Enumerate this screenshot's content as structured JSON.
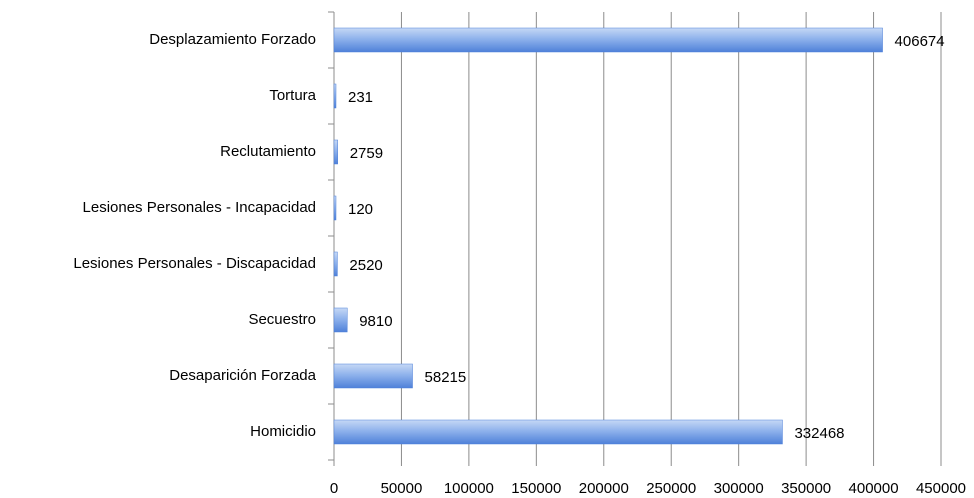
{
  "chart_data": {
    "type": "bar",
    "orientation": "horizontal",
    "categories": [
      "Desplazamiento Forzado",
      "Tortura",
      "Reclutamiento",
      "Lesiones Personales - Incapacidad",
      "Lesiones Personales - Discapacidad",
      "Secuestro",
      "Desaparición Forzada",
      "Homicidio"
    ],
    "values": [
      406674,
      231,
      2759,
      120,
      2520,
      9810,
      58215,
      332468
    ],
    "color": "#4f81d9",
    "xlim": [
      0,
      450000
    ],
    "xticks": [
      0,
      50000,
      100000,
      150000,
      200000,
      250000,
      300000,
      350000,
      400000,
      450000
    ],
    "grid": true
  }
}
